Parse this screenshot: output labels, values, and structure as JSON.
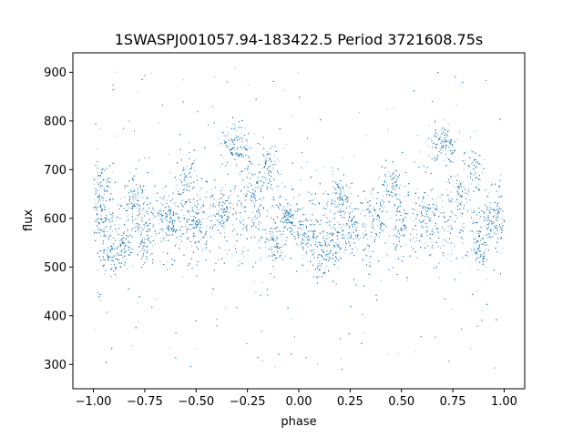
{
  "chart_data": {
    "type": "scatter",
    "title": "1SWASPJ001057.94-183422.5 Period 3721608.75s",
    "xlabel": "phase",
    "ylabel": "flux",
    "xlim": [
      -1.1,
      1.1
    ],
    "ylim": [
      250,
      940
    ],
    "xticks": [
      -1.0,
      -0.75,
      -0.5,
      -0.25,
      0.0,
      0.25,
      0.5,
      0.75,
      1.0
    ],
    "xtick_labels": [
      "−1.00",
      "−0.75",
      "−0.50",
      "−0.25",
      "0.00",
      "0.25",
      "0.50",
      "0.75",
      "1.00"
    ],
    "yticks": [
      300,
      400,
      500,
      600,
      700,
      800,
      900
    ],
    "ytick_labels": [
      "300",
      "400",
      "500",
      "600",
      "700",
      "800",
      "900"
    ],
    "grid": false,
    "legend": "none",
    "marker_color": "#1f77b4",
    "series": [
      {
        "x_range": [
          -1.0,
          1.0
        ],
        "folded_period": 1.0,
        "n_points": 14000,
        "baseline_flux": 590,
        "scatter_flux": 45,
        "clumps": [
          {
            "phase": -0.97,
            "flux": 670
          },
          {
            "phase": -0.97,
            "flux": 600
          },
          {
            "phase": -0.92,
            "flux": 520
          },
          {
            "phase": -0.85,
            "flux": 540
          },
          {
            "phase": -0.8,
            "flux": 650
          },
          {
            "phase": -0.75,
            "flux": 560
          },
          {
            "phase": -0.62,
            "flux": 600
          },
          {
            "phase": -0.55,
            "flux": 680
          },
          {
            "phase": -0.5,
            "flux": 590
          },
          {
            "phase": -0.38,
            "flux": 620
          },
          {
            "phase": -0.33,
            "flux": 750
          },
          {
            "phase": -0.28,
            "flux": 745
          },
          {
            "phase": -0.22,
            "flux": 650
          },
          {
            "phase": -0.15,
            "flux": 710
          },
          {
            "phase": -0.12,
            "flux": 540
          },
          {
            "phase": -0.05,
            "flux": 600
          },
          {
            "phase": 0.03,
            "flux": 560
          },
          {
            "phase": 0.1,
            "flux": 520
          },
          {
            "phase": 0.15,
            "flux": 540
          },
          {
            "phase": 0.2,
            "flux": 650
          },
          {
            "phase": 0.25,
            "flux": 560
          },
          {
            "phase": 0.38,
            "flux": 600
          },
          {
            "phase": 0.45,
            "flux": 680
          },
          {
            "phase": 0.5,
            "flux": 590
          },
          {
            "phase": 0.62,
            "flux": 620
          },
          {
            "phase": 0.67,
            "flux": 750
          },
          {
            "phase": 0.72,
            "flux": 745
          },
          {
            "phase": 0.78,
            "flux": 650
          },
          {
            "phase": 0.85,
            "flux": 710
          },
          {
            "phase": 0.88,
            "flux": 540
          },
          {
            "phase": 0.95,
            "flux": 600
          }
        ]
      }
    ]
  }
}
